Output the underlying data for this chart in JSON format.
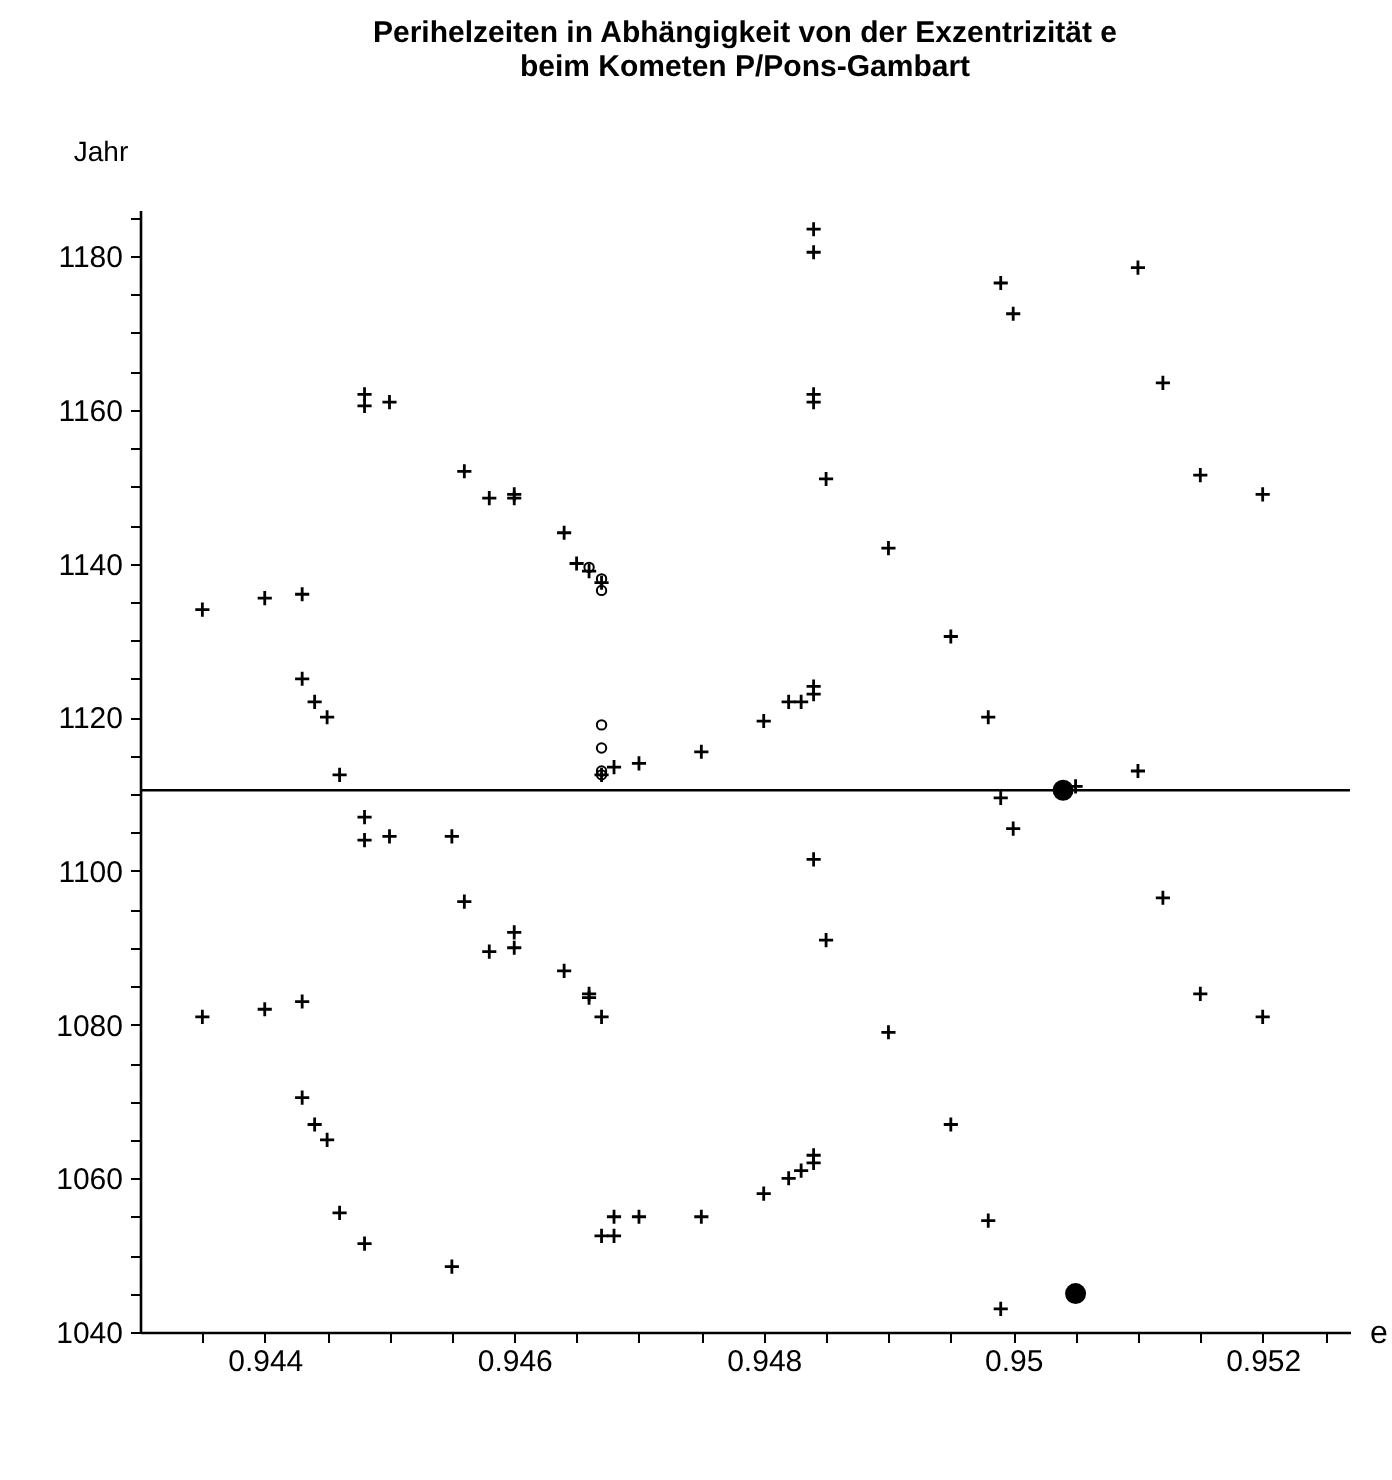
{
  "chart_data": {
    "type": "scatter",
    "title": "Perihelzeiten in Abhängigkeit von der Exzentrizität e\nbeim Kometen P/Pons-Gambart",
    "xlabel": "e",
    "ylabel": "Jahr",
    "xlim": [
      0.943,
      0.9527
    ],
    "ylim": [
      1040,
      1186
    ],
    "xticks": [
      {
        "value": 0.9435,
        "label": null
      },
      0.944,
      {
        "value": 0.9445,
        "label": null
      },
      {
        "value": 0.945,
        "label": null
      },
      {
        "value": 0.9455,
        "label": null
      },
      0.946,
      {
        "value": 0.9465,
        "label": null
      },
      {
        "value": 0.947,
        "label": null
      },
      {
        "value": 0.9475,
        "label": null
      },
      0.948,
      {
        "value": 0.9485,
        "label": null
      },
      {
        "value": 0.949,
        "label": null
      },
      {
        "value": 0.9495,
        "label": null
      },
      0.95,
      {
        "value": 0.9505,
        "label": null
      },
      {
        "value": 0.951,
        "label": null
      },
      {
        "value": 0.9515,
        "label": null
      },
      0.952,
      {
        "value": 0.9525,
        "label": null
      }
    ],
    "yticks": [
      1040,
      {
        "value": 1045,
        "label": null
      },
      {
        "value": 1050,
        "label": null
      },
      {
        "value": 1055,
        "label": null
      },
      1060,
      {
        "value": 1065,
        "label": null
      },
      {
        "value": 1070,
        "label": null
      },
      {
        "value": 1075,
        "label": null
      },
      1080,
      {
        "value": 1085,
        "label": null
      },
      {
        "value": 1090,
        "label": null
      },
      {
        "value": 1095,
        "label": null
      },
      1100,
      {
        "value": 1105,
        "label": null
      },
      {
        "value": 1110,
        "label": null
      },
      {
        "value": 1115,
        "label": null
      },
      1120,
      {
        "value": 1125,
        "label": null
      },
      {
        "value": 1130,
        "label": null
      },
      {
        "value": 1135,
        "label": null
      },
      1140,
      {
        "value": 1145,
        "label": null
      },
      {
        "value": 1150,
        "label": null
      },
      {
        "value": 1155,
        "label": null
      },
      1160,
      {
        "value": 1165,
        "label": null
      },
      {
        "value": 1170,
        "label": null
      },
      {
        "value": 1175,
        "label": null
      },
      1180,
      {
        "value": 1185,
        "label": null
      }
    ],
    "grid": false,
    "ref_lines": [
      {
        "axis": "y",
        "value": 1110.5,
        "color": "#000000"
      }
    ],
    "series": [
      {
        "color": "#000000",
        "marker": "cross",
        "x": [
          0.9435,
          0.944,
          0.9443,
          0.9443,
          0.9444,
          0.9445,
          0.9446,
          0.9448,
          0.9448,
          0.945,
          0.9456,
          0.9458,
          0.946,
          0.946,
          0.9464,
          0.9465,
          0.9466,
          0.9467,
          0.9448,
          0.9448,
          0.945,
          0.9455,
          0.9456,
          0.9458,
          0.946,
          0.946,
          0.9464,
          0.9466,
          0.9466,
          0.9467,
          0.9435,
          0.944,
          0.9443,
          0.9443,
          0.9444,
          0.9445,
          0.9446,
          0.9448,
          0.9455,
          0.9467,
          0.9468,
          0.9468,
          0.947,
          0.9475,
          0.948,
          0.9482,
          0.9483,
          0.9484,
          0.9484,
          0.9484,
          0.9485,
          0.949,
          0.9495,
          0.9498,
          0.9499,
          0.9499,
          0.95,
          0.9505,
          0.951,
          0.9512,
          0.9515,
          0.952,
          0.9467,
          0.9468,
          0.947,
          0.9475,
          0.948,
          0.9482,
          0.9483,
          0.9484,
          0.9484,
          0.9484,
          0.9484,
          0.9484,
          0.9484,
          0.9485,
          0.949,
          0.9495,
          0.9498,
          0.9499,
          0.95,
          0.951,
          0.9512,
          0.9515,
          0.952
        ],
        "values": [
          1134,
          1135.5,
          1136,
          1125,
          1122,
          1120,
          1112.5,
          1162,
          1160.5,
          1161,
          1152,
          1148.5,
          1149,
          1148.5,
          1144,
          1140,
          1139,
          1137.5,
          1107,
          1104,
          1104.5,
          1104.5,
          1096,
          1089.5,
          1092,
          1090,
          1087,
          1084,
          1083.5,
          1081,
          1081,
          1082,
          1083,
          1070.5,
          1067,
          1065,
          1055.5,
          1051.5,
          1048.5,
          1052.5,
          1052.5,
          1055,
          1055,
          1055,
          1058,
          1060,
          1061,
          1062,
          1063,
          1101.5,
          1091,
          1079,
          1067,
          1054.5,
          1043,
          1109.5,
          1105.5,
          1111,
          1113,
          1096.5,
          1084,
          1081,
          1112.5,
          1113.5,
          1114,
          1115.5,
          1119.5,
          1122,
          1122,
          1123,
          1124,
          1183.5,
          1180.5,
          1162,
          1161,
          1151,
          1142,
          1130.5,
          1120,
          1176.5,
          1172.5,
          1178.5,
          1163.5,
          1151.5,
          1149
        ]
      },
      {
        "color": "#000000",
        "marker": "circle",
        "x": [
          0.9467,
          0.9467,
          0.9467,
          0.9467,
          0.9466,
          0.9467,
          0.9467
        ],
        "values": [
          1119,
          1116,
          1112.5,
          1113,
          1139.5,
          1138,
          1136.5
        ]
      },
      {
        "type": "bubble",
        "color": "#000000",
        "x": [
          0.9504,
          0.9505
        ],
        "values": [
          1110.5,
          1045
        ],
        "sizes": [
          1,
          1
        ]
      }
    ]
  }
}
